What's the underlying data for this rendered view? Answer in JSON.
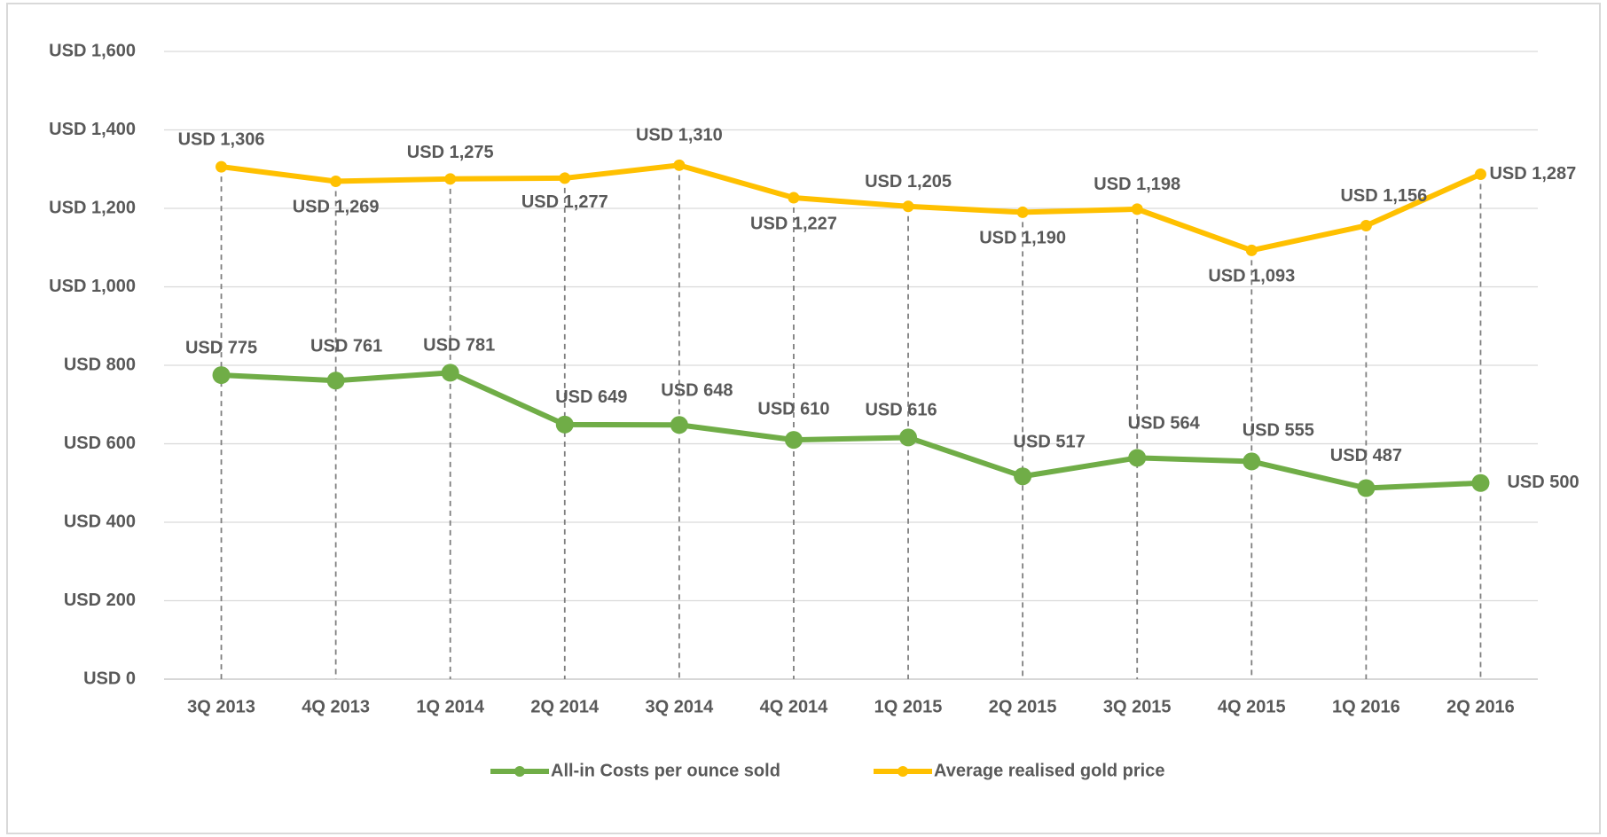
{
  "chart_data": {
    "type": "line",
    "categories": [
      "3Q 2013",
      "4Q 2013",
      "1Q 2014",
      "2Q 2014",
      "3Q 2014",
      "4Q 2014",
      "1Q 2015",
      "2Q 2015",
      "3Q 2015",
      "4Q 2015",
      "1Q 2016",
      "2Q 2016"
    ],
    "series": [
      {
        "name": "All-in Costs per ounce sold",
        "color": "#70ad47",
        "values": [
          775,
          761,
          781,
          649,
          648,
          610,
          616,
          517,
          564,
          555,
          487,
          500
        ],
        "value_labels": [
          "USD 775",
          "USD 761",
          "USD 781",
          "USD 649",
          "USD 648",
          "USD 610",
          "USD 616",
          "USD 517",
          "USD 564",
          "USD 555",
          "USD 487",
          "USD 500"
        ]
      },
      {
        "name": "Average realised gold price",
        "color": "#ffc000",
        "values": [
          1306,
          1269,
          1275,
          1277,
          1310,
          1227,
          1205,
          1190,
          1198,
          1093,
          1156,
          1287
        ],
        "value_labels": [
          "USD 1,306",
          "USD 1,269",
          "USD 1,275",
          "USD 1,277",
          "USD 1,310",
          "USD 1,227",
          "USD 1,205",
          "USD 1,190",
          "USD 1,198",
          "USD 1,093",
          "USD 1,156",
          "USD 1,287"
        ]
      }
    ],
    "ylim": [
      0,
      1600
    ],
    "yticks": [
      {
        "value": 0,
        "label": "USD 0"
      },
      {
        "value": 200,
        "label": "USD 200"
      },
      {
        "value": 400,
        "label": "USD 400"
      },
      {
        "value": 600,
        "label": "USD 600"
      },
      {
        "value": 800,
        "label": "USD 800"
      },
      {
        "value": 1000,
        "label": "USD 1,000"
      },
      {
        "value": 1200,
        "label": "USD 1,200"
      },
      {
        "value": 1400,
        "label": "USD 1,400"
      },
      {
        "value": 1600,
        "label": "USD 1,600"
      }
    ],
    "grid": true,
    "legend": "bottom"
  }
}
